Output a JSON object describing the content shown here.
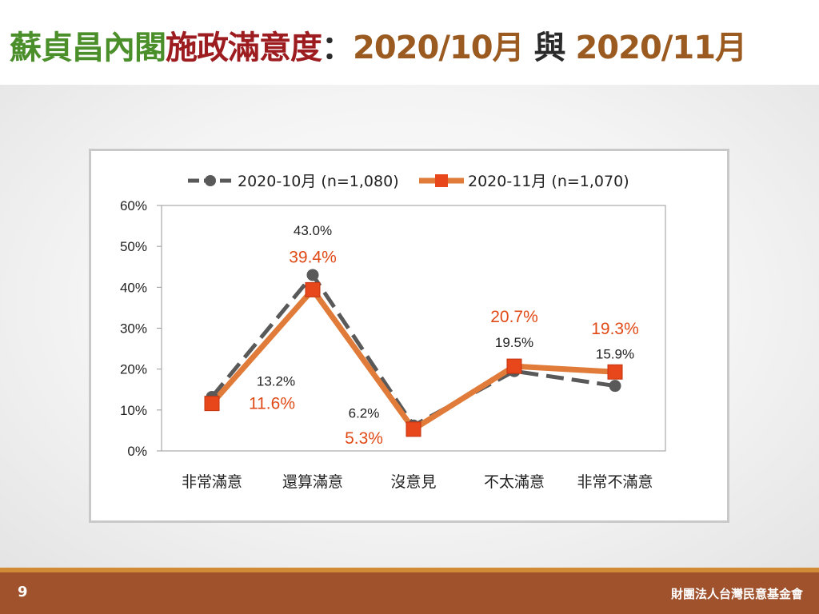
{
  "header": {
    "title_part1": "蘇貞昌內閣",
    "title_part2": "施政滿意度",
    "title_sep": "：",
    "title_part3": "2020/10月",
    "title_part4": " 與 ",
    "title_part5": "2020/11月"
  },
  "footer": {
    "page_number": "9",
    "organization": "財團法人台灣民意基金會"
  },
  "colors": {
    "series_oct": "#595959",
    "series_nov": "#e07b39",
    "marker_nov": "#e8461b",
    "label_nov": "#e04a17"
  },
  "chart_data": {
    "type": "line",
    "categories": [
      "非常滿意",
      "還算滿意",
      "沒意見",
      "不太滿意",
      "非常不滿意"
    ],
    "series": [
      {
        "name": "2020-10月  (n=1,080)",
        "values": [
          13.2,
          43.0,
          6.2,
          19.5,
          15.9
        ],
        "labels": [
          "13.2%",
          "43.0%",
          "6.2%",
          "19.5%",
          "15.9%"
        ]
      },
      {
        "name": "2020-11月  (n=1,070)",
        "values": [
          11.6,
          39.4,
          5.3,
          20.7,
          19.3
        ],
        "labels": [
          "11.6%",
          "39.4%",
          "5.3%",
          "20.7%",
          "19.3%"
        ]
      }
    ],
    "yticks": [
      "0%",
      "10%",
      "20%",
      "30%",
      "40%",
      "50%",
      "60%"
    ],
    "ylim": [
      0,
      60
    ],
    "grid": false,
    "legend": "top"
  }
}
